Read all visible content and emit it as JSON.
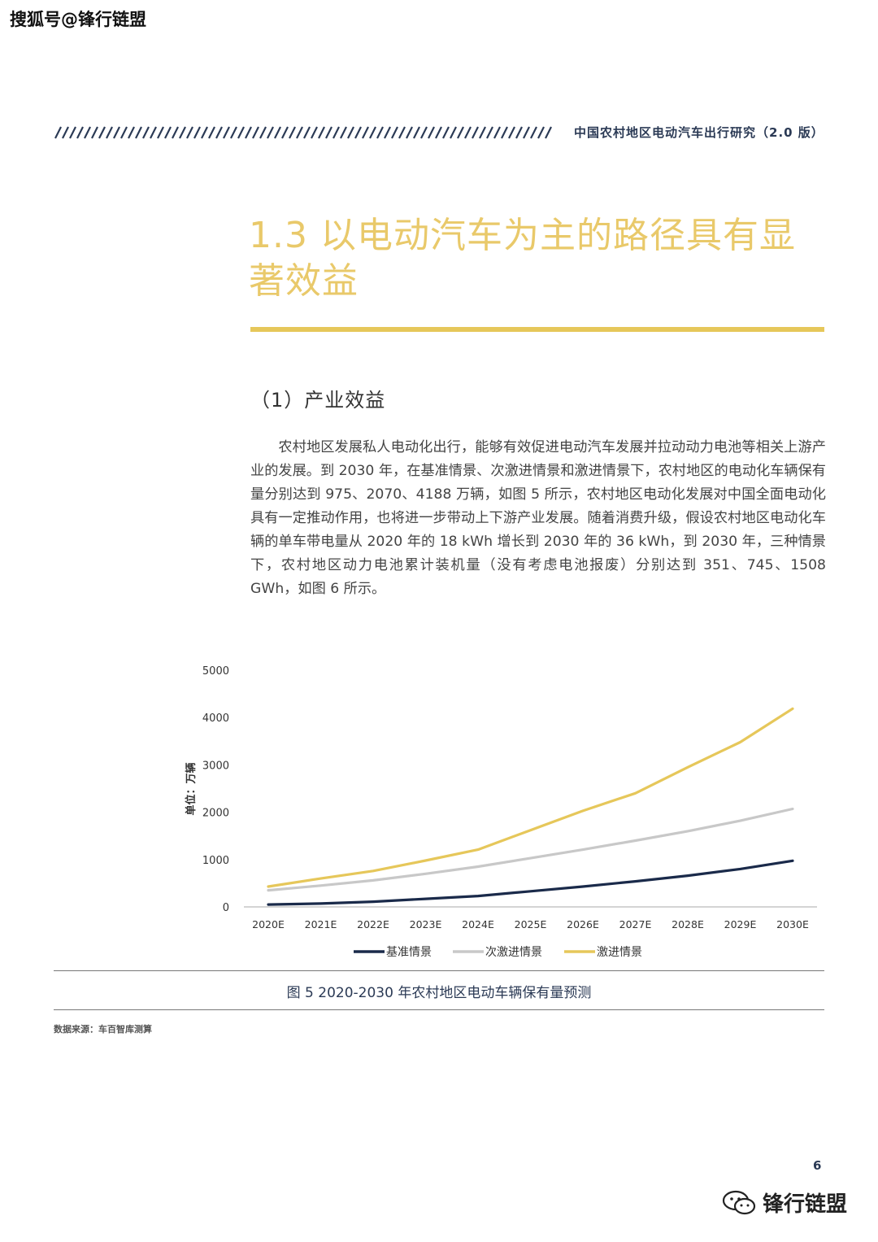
{
  "watermark": {
    "top": "搜狐号@锋行链盟",
    "bottom": "锋行链盟"
  },
  "header": {
    "title": "中国农村地区电动汽车出行研究（2.0 版）"
  },
  "section": {
    "title": "1.3 以电动汽车为主的路径具有显著效益",
    "subtitle": "（1）产业效益"
  },
  "body": {
    "paragraph": "农村地区发展私人电动化出行，能够有效促进电动汽车发展并拉动动力电池等相关上游产业的发展。到 2030 年，在基准情景、次激进情景和激进情景下，农村地区的电动化车辆保有量分别达到 975、2070、4188 万辆，如图 5 所示，农村地区电动化发展对中国全面电动化具有一定推动作用，也将进一步带动上下游产业发展。随着消费升级，假设农村地区电动化车辆的单车带电量从 2020 年的 18 kWh 增长到 2030 年的 36 kWh，到 2030 年，三种情景下，农村地区动力电池累计装机量（没有考虑电池报废）分别达到 351、745、1508 GWh，如图 6 所示。"
  },
  "chart_data": {
    "type": "line",
    "title": "",
    "xlabel": "",
    "ylabel": "单位：万辆",
    "ylim": [
      0,
      5000
    ],
    "yticks": [
      0,
      1000,
      2000,
      3000,
      4000,
      5000
    ],
    "categories": [
      "2020E",
      "2021E",
      "2022E",
      "2023E",
      "2024E",
      "2025E",
      "2026E",
      "2027E",
      "2028E",
      "2029E",
      "2030E"
    ],
    "series": [
      {
        "name": "基准情景",
        "color": "#1a2a4a",
        "values": [
          50,
          70,
          110,
          170,
          230,
          330,
          430,
          540,
          660,
          800,
          975
        ]
      },
      {
        "name": "次激进情景",
        "color": "#c8c8c8",
        "values": [
          350,
          450,
          560,
          700,
          850,
          1030,
          1210,
          1400,
          1600,
          1820,
          2070
        ]
      },
      {
        "name": "激进情景",
        "color": "#e6c75a",
        "values": [
          430,
          600,
          760,
          980,
          1210,
          1620,
          2030,
          2400,
          2950,
          3480,
          4188
        ]
      }
    ],
    "grid": false,
    "legend": "bottom"
  },
  "figure": {
    "caption": "图 5 2020-2030 年农村地区电动车辆保有量预测",
    "source": "数据来源：车百智库测算"
  },
  "page": {
    "number": "6"
  },
  "icons": {
    "wechat": "wechat-icon"
  }
}
